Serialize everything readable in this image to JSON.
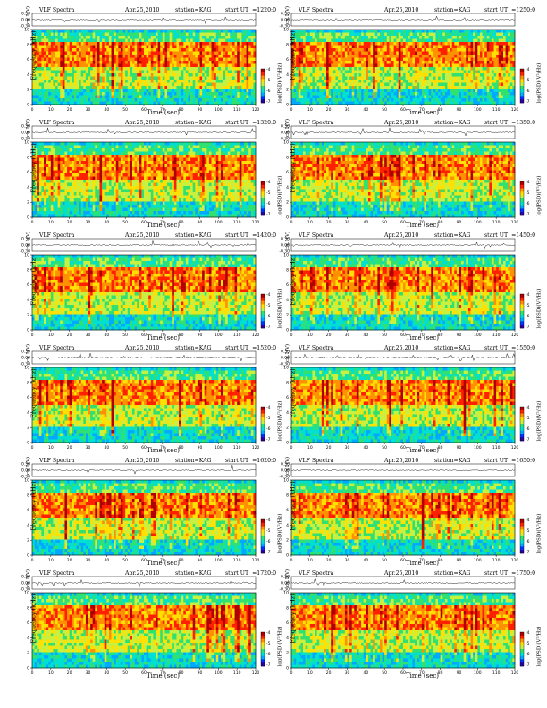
{
  "legend_label": "log(PSD)(V²/Hz)",
  "xlabel": "Time (sec)",
  "colors": {
    "colormap": [
      "#2a00a0",
      "#0033ff",
      "#00a8ff",
      "#00e0d0",
      "#30e070",
      "#c8f040",
      "#ffe000",
      "#ff9000",
      "#ff2000",
      "#b00000"
    ]
  },
  "panels": [
    {
      "id": "p1",
      "header": {
        "title": "VLF Spectra",
        "date": "Apr.25,2010",
        "station": "station=KAG",
        "ut_label": "start  UT",
        "ut_value": "=1220:0"
      },
      "ylabel_top": "ch.1(V)",
      "ylabel_main": "Frequency (kHz)"
    },
    {
      "id": "p2",
      "header": {
        "title": "VLF Spectra",
        "date": "Apr.25,2010",
        "station": "station=KAG",
        "ut_label": "start  UT",
        "ut_value": "=1250:0"
      },
      "ylabel_top": "ch.1(V)",
      "ylabel_main": "Frequency (kHz)"
    },
    {
      "id": "p3",
      "header": {
        "title": "VLF Spectra",
        "date": "Apr.25,2010",
        "station": "station=KAG",
        "ut_label": "start  UT",
        "ut_value": "=1320:0"
      },
      "ylabel_top": "ch.1(V)",
      "ylabel_main": "Frequency (kHz)"
    },
    {
      "id": "p4",
      "header": {
        "title": "VLF Spectra",
        "date": "Apr.25,2010",
        "station": "station=KAG",
        "ut_label": "start  UT",
        "ut_value": "=1350:0"
      },
      "ylabel_top": "ch.1(V)",
      "ylabel_main": "Frequency (kHz)"
    },
    {
      "id": "p5",
      "header": {
        "title": "VLF Spectra",
        "date": "Apr.25,2010",
        "station": "station=KAG",
        "ut_label": "start  UT",
        "ut_value": "=1420:0"
      },
      "ylabel_top": "ch.1(V)",
      "ylabel_main": "Frequency (kHz)"
    },
    {
      "id": "p6",
      "header": {
        "title": "VLF Spectra",
        "date": "Apr.25,2010",
        "station": "station=KAG",
        "ut_label": "start  UT",
        "ut_value": "=1450:0"
      },
      "ylabel_top": "ch.1(V)",
      "ylabel_main": "Frequency (kHz)"
    },
    {
      "id": "p7",
      "header": {
        "title": "VLF Spectra",
        "date": "Apr.25,2010",
        "station": "station=KAG",
        "ut_label": "start  UT",
        "ut_value": "=1520:0"
      },
      "ylabel_top": "ch.1(V)",
      "ylabel_main": "Frequency (kHz)"
    },
    {
      "id": "p8",
      "header": {
        "title": "VLF Spectra",
        "date": "Apr.25,2010",
        "station": "station=KAG",
        "ut_label": "start  UT",
        "ut_value": "=1550:0"
      },
      "ylabel_top": "ch.1(V)",
      "ylabel_main": "Frequency (kHz)"
    },
    {
      "id": "p9",
      "header": {
        "title": "VLF Spectra",
        "date": "Apr.25,2010",
        "station": "station=KAG",
        "ut_label": "start  UT",
        "ut_value": "=1620:0"
      },
      "ylabel_top": "ch.1(V)",
      "ylabel_main": "Frequency (kHz)"
    },
    {
      "id": "p10",
      "header": {
        "title": "VLF Spectra",
        "date": "Apr.25,2010",
        "station": "station=KAG",
        "ut_label": "start  UT",
        "ut_value": "=1650:0"
      },
      "ylabel_top": "ch.1(V)",
      "ylabel_main": "Frequency (kHz)"
    },
    {
      "id": "p11",
      "header": {
        "title": "VLF Spectra",
        "date": "Apr.25,2010",
        "station": "station=KAG",
        "ut_label": "start  UT",
        "ut_value": "=1720:0"
      },
      "ylabel_top": "ch.1(V)",
      "ylabel_main": "Frequency (kHz)"
    },
    {
      "id": "p12",
      "header": {
        "title": "VLF Spectra",
        "date": "Apr.25,2010",
        "station": "station=KAG",
        "ut_label": "start  UT",
        "ut_value": "=1750:0"
      },
      "ylabel_top": "ch.1(V)",
      "ylabel_main": "Frequency (kHz)"
    }
  ],
  "chart_data": {
    "type": "heatmap",
    "xlabel": "Time (sec)",
    "ylabel": "Frequency (kHz)",
    "colorbar_label": "log(PSD)(V²/Hz)",
    "xlim": [
      0,
      120
    ],
    "ylim": [
      0,
      10
    ],
    "x_ticks": [
      0,
      10,
      20,
      30,
      40,
      50,
      60,
      70,
      80,
      90,
      100,
      110,
      120
    ],
    "y_ticks": [
      0,
      2,
      4,
      6,
      8,
      10
    ],
    "waveform_ylim": [
      -0.3,
      0.3
    ],
    "waveform_ticks": [
      "0.30",
      "0.00",
      "-0.30"
    ],
    "colorbar_ticks": [
      "-4",
      "-5",
      "-6",
      "-7"
    ],
    "grid": false,
    "panel_count": 12,
    "layout": "6 rows x 2 columns",
    "start_times_ut": [
      "1220:0",
      "1250:0",
      "1320:0",
      "1350:0",
      "1420:0",
      "1450:0",
      "1520:0",
      "1550:0",
      "1620:0",
      "1650:0",
      "1720:0",
      "1750:0"
    ],
    "spectral_bands_khz": [
      {
        "band": [
          0,
          2
        ],
        "level": "low (blue/cyan)"
      },
      {
        "band": [
          2,
          5
        ],
        "level": "medium (green/yellow)"
      },
      {
        "band": [
          5,
          8.5
        ],
        "level": "high (yellow/red), strongest at 6-8"
      },
      {
        "band": [
          8.5,
          9.5
        ],
        "level": "medium (green)"
      },
      {
        "band": [
          9.5,
          10
        ],
        "level": "low (cyan)"
      }
    ]
  }
}
